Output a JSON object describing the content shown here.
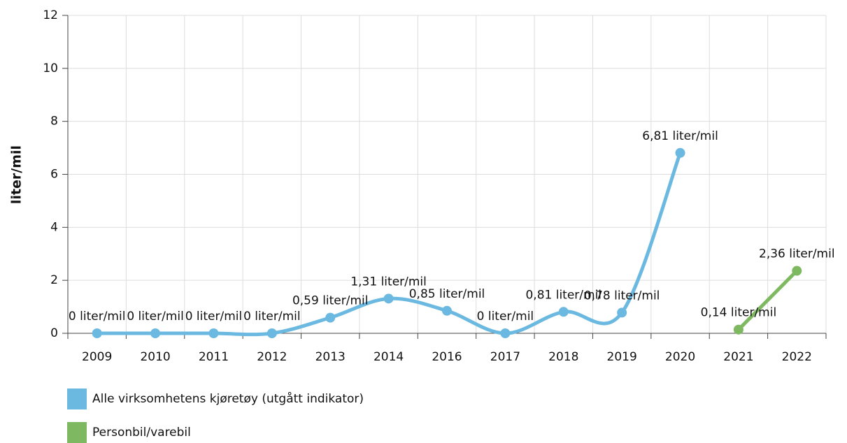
{
  "chart_data": {
    "type": "line",
    "ylabel": "liter/mil",
    "categories": [
      "2009",
      "2010",
      "2011",
      "2012",
      "2013",
      "2014",
      "2016",
      "2017",
      "2018",
      "2019",
      "2020",
      "2021",
      "2022"
    ],
    "series": [
      {
        "name": "Alle virksomhetens kjøretøy (utgått indikator)",
        "color": "#6bb9e0",
        "smooth": true,
        "values": [
          0,
          0,
          0,
          0,
          0.59,
          1.31,
          0.85,
          0,
          0.81,
          0.78,
          6.81,
          null,
          null
        ],
        "value_labels": [
          "0 liter/mil",
          "0 liter/mil",
          "0 liter/mil",
          "0 liter/mil",
          "0,59 liter/mil",
          "1,31 liter/mil",
          "0,85 liter/mil",
          "0 liter/mil",
          "0,81 liter/mil",
          "0,78 liter/mil",
          "6,81 liter/mil",
          null,
          null
        ]
      },
      {
        "name": "Personbil/varebil",
        "color": "#7eb860",
        "smooth": false,
        "values": [
          null,
          null,
          null,
          null,
          null,
          null,
          null,
          null,
          null,
          null,
          null,
          0.14,
          2.36
        ],
        "value_labels": [
          null,
          null,
          null,
          null,
          null,
          null,
          null,
          null,
          null,
          null,
          null,
          "0,14 liter/mil",
          "2,36 liter/mil"
        ]
      }
    ],
    "ylim": [
      0,
      12
    ],
    "yticks": [
      0,
      2,
      4,
      6,
      8,
      10,
      12
    ],
    "grid": true,
    "legend": "bottom"
  }
}
